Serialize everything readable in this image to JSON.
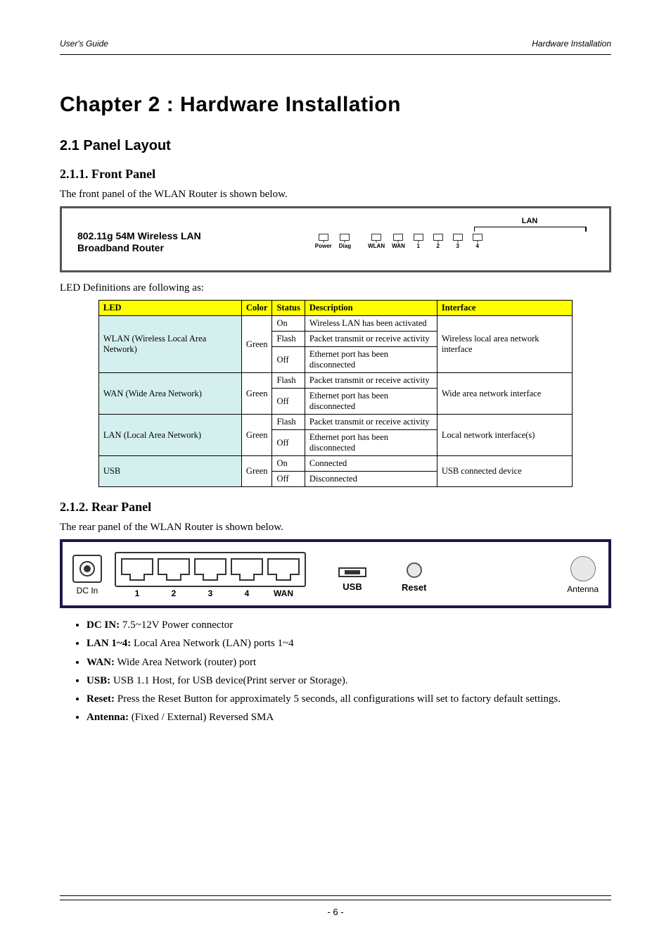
{
  "header": {
    "left": "User's Guide",
    "right": "Hardware Installation"
  },
  "chapter_title": "Chapter 2 : Hardware Installation",
  "panel_section_title": "2.1 Panel Layout",
  "front_panel_heading": "2.1.1. Front Panel",
  "front_panel_intro": "The front panel of the WLAN Router is shown below.",
  "router_label_line1": "802.11g 54M Wireless LAN",
  "router_label_line2": "Broadband Router",
  "front_leds": {
    "group1": [
      "Power",
      "Diag"
    ],
    "group2": [
      "WLAN",
      "WAN"
    ],
    "group3": [
      "1",
      "2",
      "3",
      "4"
    ],
    "lan_heading": "LAN"
  },
  "led_table": {
    "columns": [
      "LED",
      "Color",
      "Status",
      "Description",
      "Interface"
    ],
    "rows": [
      {
        "led": "WLAN (Wireless Local Area Network)",
        "color": "Green",
        "states": [
          {
            "status": "On",
            "desc": "Wireless LAN has been activated"
          },
          {
            "status": "Flash",
            "desc": "Packet transmit or receive activity"
          },
          {
            "status": "Off",
            "desc": "Ethernet port has been disconnected"
          }
        ],
        "interface": "Wireless local area network interface"
      },
      {
        "led": "WAN (Wide Area Network)",
        "color": "Green",
        "states": [
          {
            "status": "Flash",
            "desc": "Packet transmit or receive activity"
          },
          {
            "status": "Off",
            "desc": "Ethernet port has been disconnected"
          }
        ],
        "interface": "Wide area network interface"
      },
      {
        "led": "LAN (Local Area Network)",
        "color": "Green",
        "states": [
          {
            "status": "Flash",
            "desc": "Packet transmit or receive activity"
          },
          {
            "status": "Off",
            "desc": "Ethernet port has been disconnected"
          }
        ],
        "interface": "Local network interface(s)"
      },
      {
        "led": "USB",
        "color": "Green",
        "states": [
          {
            "status": "On",
            "desc": "Connected"
          },
          {
            "status": "Off",
            "desc": "Disconnected"
          }
        ],
        "interface": "USB connected device"
      }
    ]
  },
  "rear_panel_heading": "2.1.2. Rear Panel",
  "rear_panel_intro": "The rear panel of the WLAN Router is shown below.",
  "rear_ports": {
    "dc": "DC In",
    "lan_labels": [
      "1",
      "2",
      "3",
      "4",
      "WAN"
    ],
    "usb": "USB",
    "reset": "Reset",
    "antenna": "Antenna"
  },
  "rear_bullets": [
    {
      "label": "DC IN:",
      "text": " 7.5~12V Power connector"
    },
    {
      "label": "LAN 1~4:",
      "text": " Local Area Network (LAN) ports 1~4"
    },
    {
      "label": "WAN:",
      "text": " Wide Area Network (router) port"
    },
    {
      "label": "USB:",
      "text": " USB 1.1 Host, for USB device(Print server or Storage)."
    },
    {
      "label": "Reset:",
      "text": " Press the Reset Button for approximately 5 seconds, all configurations will set to factory default settings."
    },
    {
      "label": "Antenna:",
      "text": " (Fixed / External) Reversed SMA"
    }
  ],
  "page_number": "- 6 -",
  "colors": {
    "table_header_bg": "#ffff00",
    "table_label_bg": "#d4f0ee",
    "rear_border": "#1a1a4a"
  }
}
